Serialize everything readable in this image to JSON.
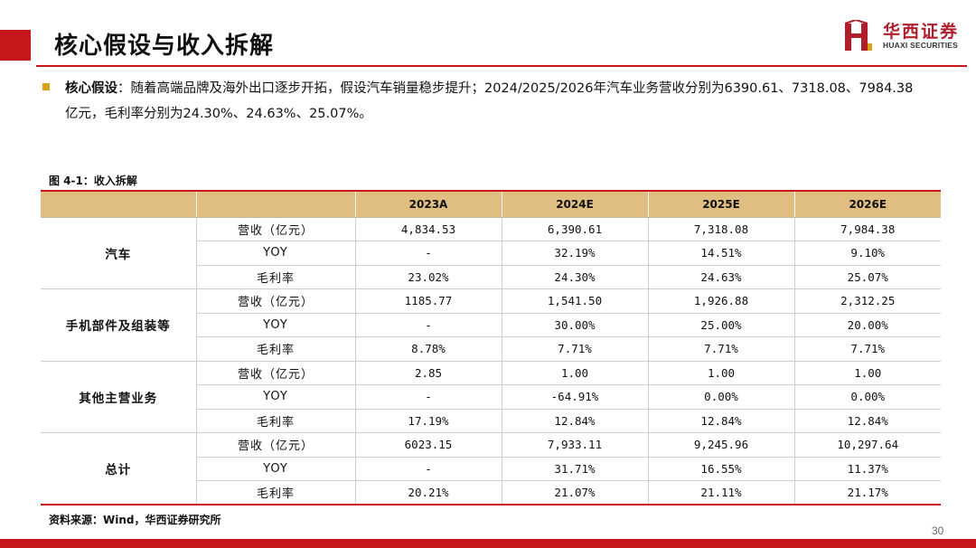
{
  "header": {
    "title": "核心假设与收入拆解",
    "logo_cn": "华西证券",
    "logo_en": "HUAXI SECURITIES"
  },
  "intro": {
    "label": "核心假设",
    "text_line1": "：随着高端品牌及海外出口逐步开拓，假设汽车销量稳步提升；2024/2025/2026年汽车业务营收分别为6390.61、7318.08、7984.38",
    "text_line2": "亿元，毛利率分别为24.30%、24.63%、25.07%。"
  },
  "figure": {
    "caption": "图 4-1：收入拆解",
    "source": "资料来源：Wind，华西证券研究所"
  },
  "table": {
    "columns": [
      "2023A",
      "2024E",
      "2025E",
      "2026E"
    ],
    "groups": [
      {
        "name": "汽车",
        "rows": [
          {
            "metric": "营收（亿元）",
            "values": [
              "4,834.53",
              "6,390.61",
              "7,318.08",
              "7,984.38"
            ]
          },
          {
            "metric": "YOY",
            "values": [
              "-",
              "32.19%",
              "14.51%",
              "9.10%"
            ]
          },
          {
            "metric": "毛利率",
            "values": [
              "23.02%",
              "24.30%",
              "24.63%",
              "25.07%"
            ]
          }
        ]
      },
      {
        "name": "手机部件及组装等",
        "rows": [
          {
            "metric": "营收（亿元）",
            "values": [
              "1185.77",
              "1,541.50",
              "1,926.88",
              "2,312.25"
            ]
          },
          {
            "metric": "YOY",
            "values": [
              "-",
              "30.00%",
              "25.00%",
              "20.00%"
            ]
          },
          {
            "metric": "毛利率",
            "values": [
              "8.78%",
              "7.71%",
              "7.71%",
              "7.71%"
            ]
          }
        ]
      },
      {
        "name": "其他主营业务",
        "rows": [
          {
            "metric": "营收（亿元）",
            "values": [
              "2.85",
              "1.00",
              "1.00",
              "1.00"
            ]
          },
          {
            "metric": "YOY",
            "values": [
              "-",
              "-64.91%",
              "0.00%",
              "0.00%"
            ]
          },
          {
            "metric": "毛利率",
            "values": [
              "17.19%",
              "12.84%",
              "12.84%",
              "12.84%"
            ]
          }
        ]
      },
      {
        "name": "总计",
        "rows": [
          {
            "metric": "营收（亿元）",
            "values": [
              "6023.15",
              "7,933.11",
              "9,245.96",
              "10,297.64"
            ]
          },
          {
            "metric": "YOY",
            "values": [
              "-",
              "31.71%",
              "16.55%",
              "11.37%"
            ]
          },
          {
            "metric": "毛利率",
            "values": [
              "20.21%",
              "21.07%",
              "21.11%",
              "21.17%"
            ]
          }
        ]
      }
    ]
  },
  "page_number": "30",
  "colors": {
    "brand_red": "#c8161d",
    "header_fill": "#e0bd80",
    "bullet": "#d9a21b"
  }
}
